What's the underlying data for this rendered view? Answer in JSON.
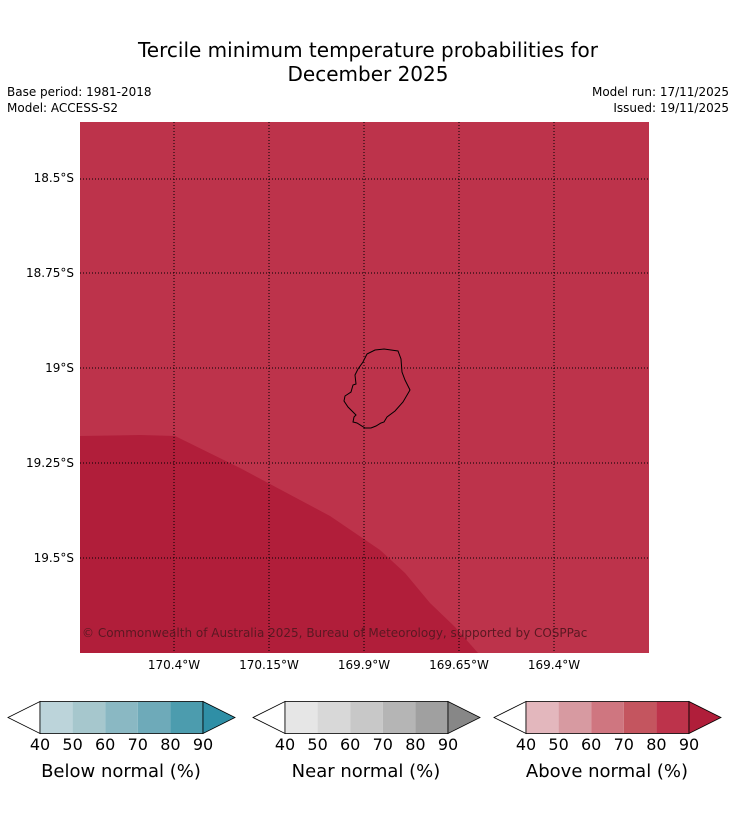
{
  "title": {
    "line1": "Tercile minimum temperature probabilities for",
    "line2": "December 2025"
  },
  "meta": {
    "base_period": "Base period: 1981-2018",
    "model": "Model: ACCESS-S2",
    "model_run": "Model run: 17/11/2025",
    "issued": "Issued: 19/11/2025"
  },
  "map": {
    "latitude_labels": [
      "18.5°S",
      "18.75°S",
      "19°S",
      "19.25°S",
      "19.5°S"
    ],
    "longitude_labels": [
      "170.4°W",
      "170.15°W",
      "169.9°W",
      "169.65°W",
      "169.4°W"
    ],
    "copyright": "© Commonwealth of Australia 2025, Bureau of Meteorology, supported by COSPPac",
    "region_colors": {
      "above_80": "#bd334b",
      "above_90": "#b11e3a"
    },
    "island_outline_color": "#000000"
  },
  "colorbars": [
    {
      "title": "Below normal (%)",
      "ticks": [
        "40",
        "50",
        "60",
        "70",
        "80",
        "90"
      ],
      "colors": [
        "#ffffff",
        "#bcd4da",
        "#a6c7cd",
        "#8ab8c3",
        "#6eaab9",
        "#4c9cae",
        "#2f8fa6"
      ]
    },
    {
      "title": "Near normal (%)",
      "ticks": [
        "40",
        "50",
        "60",
        "70",
        "80",
        "90"
      ],
      "colors": [
        "#ffffff",
        "#e6e6e6",
        "#d8d8d8",
        "#c8c8c8",
        "#b5b5b5",
        "#a0a0a0",
        "#878787"
      ]
    },
    {
      "title": "Above normal (%)",
      "ticks": [
        "40",
        "50",
        "60",
        "70",
        "80",
        "90"
      ],
      "colors": [
        "#ffffff",
        "#e3b7bd",
        "#d79aa1",
        "#cf7680",
        "#c4555f",
        "#bd334b",
        "#b01e3a"
      ]
    }
  ]
}
